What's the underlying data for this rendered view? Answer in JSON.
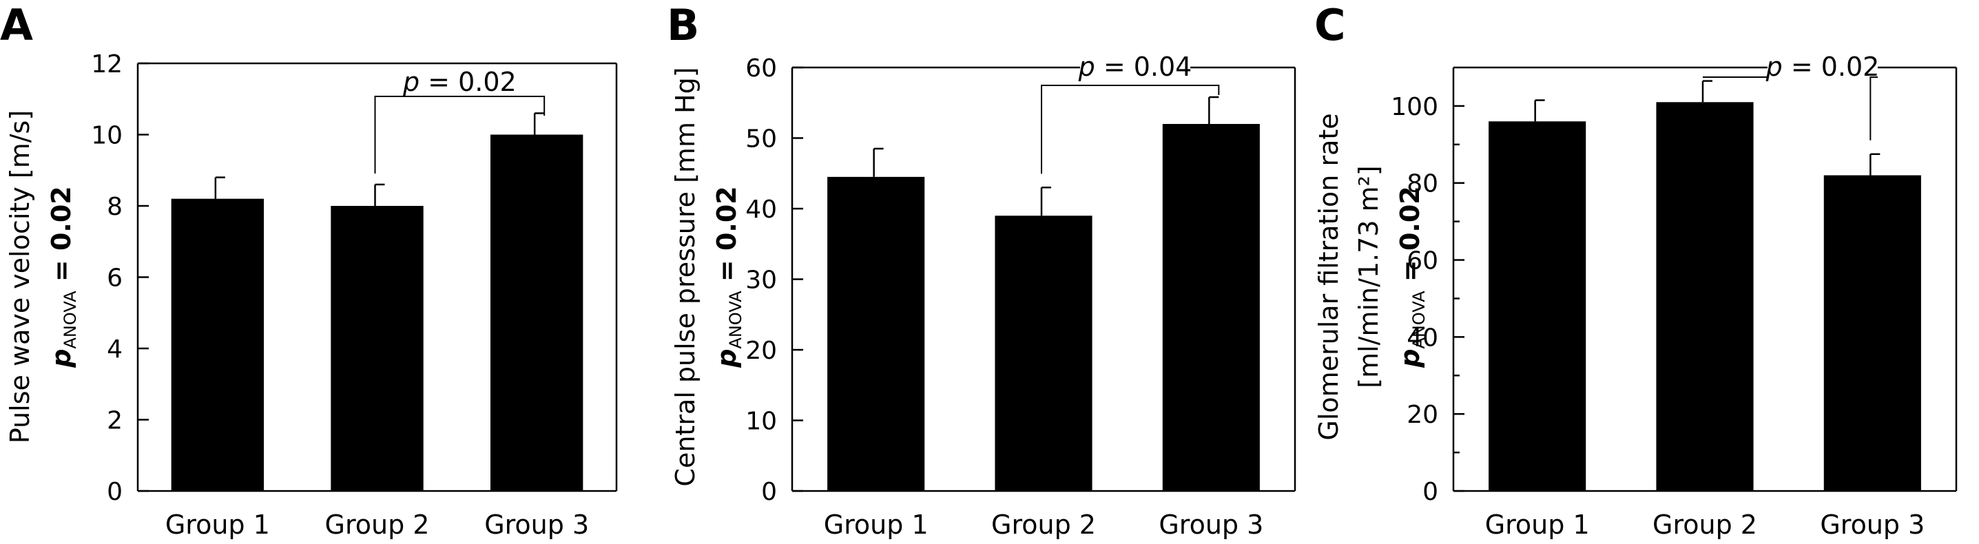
{
  "chart_data": [
    {
      "type": "bar",
      "panel": "A",
      "categories": [
        "Group 1",
        "Group 2",
        "Group 3"
      ],
      "values": [
        8.2,
        8.0,
        10.0
      ],
      "errors": [
        0.6,
        0.6,
        0.6
      ],
      "ylabel": "Pulse wave velocity [m/s]",
      "anova": {
        "p": "p",
        "sub": "ANOVA",
        "rest": " = 0.02"
      },
      "ylim": [
        0,
        12
      ],
      "yticks": [
        "0",
        "2",
        "4",
        "6",
        "8",
        "10",
        "12"
      ],
      "comparison": {
        "from": 1,
        "to": 2,
        "p": "p",
        "rest": " = 0.02"
      },
      "bar_color": "#000000"
    },
    {
      "type": "bar",
      "panel": "B",
      "categories": [
        "Group 1",
        "Group 2",
        "Group 3"
      ],
      "values": [
        44.5,
        39.0,
        52.0
      ],
      "errors": [
        4.0,
        4.0,
        3.8
      ],
      "ylabel": "Central pulse pressure [mm Hg]",
      "anova": {
        "p": "p",
        "sub": "ANOVA",
        "rest": " = 0.02"
      },
      "ylim": [
        0,
        60
      ],
      "yticks": [
        "0",
        "10",
        "20",
        "30",
        "40",
        "50",
        "60"
      ],
      "comparison": {
        "from": 1,
        "to": 2,
        "p": "p",
        "rest": " = 0.04"
      },
      "bar_color": "#000000"
    },
    {
      "type": "bar",
      "panel": "C",
      "categories": [
        "Group 1",
        "Group 2",
        "Group 3"
      ],
      "values": [
        96.0,
        101.0,
        82.0
      ],
      "errors": [
        5.5,
        5.5,
        5.5
      ],
      "ylabel": "Glomerular filtration rate",
      "ylabel2": "[ml/min/1.73 m²]",
      "anova": {
        "p": "p",
        "sub": "ANOVA",
        "rest": " = 0.02"
      },
      "ylim": [
        0,
        110
      ],
      "yticks": [
        "0",
        "20",
        "40",
        "60",
        "80",
        "100"
      ],
      "yticks_values": [
        0,
        20,
        40,
        60,
        80,
        100
      ],
      "comparison": {
        "from": 1,
        "to": 2,
        "p": "p",
        "rest": " = 0.02"
      },
      "bar_color": "#000000"
    }
  ]
}
